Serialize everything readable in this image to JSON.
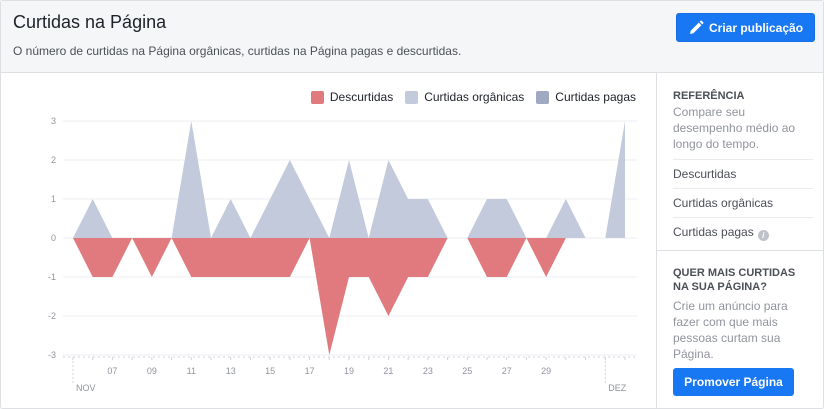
{
  "header": {
    "title": "Curtidas na Página",
    "subtitle": "O número de curtidas na Página orgânicas, curtidas na Página pagas e descurtidas.",
    "create_button_label": "Criar publicação"
  },
  "colors": {
    "primary": "#1877f2",
    "unlikes": "#e07a7e",
    "organic": "#c3cadb",
    "paid": "#9fa9c2"
  },
  "icons": {
    "create_button": "pencil-icon",
    "info": "info-icon"
  },
  "chart_data": {
    "type": "area",
    "legend": [
      "Descurtidas",
      "Curtidas orgânicas",
      "Curtidas pagas"
    ],
    "y_ticks": [
      3,
      2,
      1,
      0,
      -1,
      -2,
      -3
    ],
    "ylim": [
      -3,
      3
    ],
    "x_ticks": [
      {
        "day": 7,
        "label": "07"
      },
      {
        "day": 9,
        "label": "09"
      },
      {
        "day": 11,
        "label": "11"
      },
      {
        "day": 13,
        "label": "13"
      },
      {
        "day": 15,
        "label": "15"
      },
      {
        "day": 17,
        "label": "17"
      },
      {
        "day": 19,
        "label": "19"
      },
      {
        "day": 21,
        "label": "21"
      },
      {
        "day": 23,
        "label": "23"
      },
      {
        "day": 25,
        "label": "25"
      },
      {
        "day": 27,
        "label": "27"
      },
      {
        "day": 29,
        "label": "29"
      }
    ],
    "month_labels": [
      {
        "day": 5,
        "label": "NOV"
      },
      {
        "day": 32,
        "label": "DEZ"
      }
    ],
    "days": [
      5,
      6,
      7,
      8,
      9,
      10,
      11,
      12,
      13,
      14,
      15,
      16,
      17,
      18,
      19,
      20,
      21,
      22,
      23,
      24,
      25,
      26,
      27,
      28,
      29,
      30,
      31,
      32,
      33
    ],
    "series": [
      {
        "name": "Curtidas orgânicas",
        "values": [
          0,
          1,
          0,
          0,
          0,
          0,
          3,
          0,
          1,
          0,
          1,
          2,
          1,
          0,
          2,
          0,
          2,
          1,
          1,
          0,
          0,
          1,
          1,
          0,
          0,
          1,
          0,
          0,
          3
        ]
      },
      {
        "name": "Curtidas pagas",
        "values": [
          0,
          0,
          0,
          0,
          0,
          0,
          0,
          0,
          0,
          0,
          0,
          0,
          0,
          0,
          0,
          0,
          0,
          0,
          0,
          0,
          0,
          0,
          0,
          0,
          0,
          0,
          0,
          0,
          0
        ]
      },
      {
        "name": "Descurtidas",
        "values": [
          0,
          -1,
          -1,
          0,
          -1,
          0,
          -1,
          -1,
          -1,
          -1,
          -1,
          -1,
          0,
          -3,
          -1,
          -1,
          -2,
          -1,
          -1,
          0,
          0,
          -1,
          -1,
          0,
          -1,
          0,
          0,
          0,
          0
        ]
      }
    ]
  },
  "sidebar": {
    "reference_title": "REFERÊNCIA",
    "reference_desc": "Compare seu desempenho médio ao longo do tempo.",
    "items": [
      "Descurtidas",
      "Curtidas orgânicas",
      "Curtidas pagas"
    ],
    "promo_title": "QUER MAIS CURTIDAS NA SUA PÁGINA?",
    "promo_desc": "Crie um anúncio para fazer com que mais pessoas curtam sua Página.",
    "promo_button_label": "Promover Página"
  }
}
